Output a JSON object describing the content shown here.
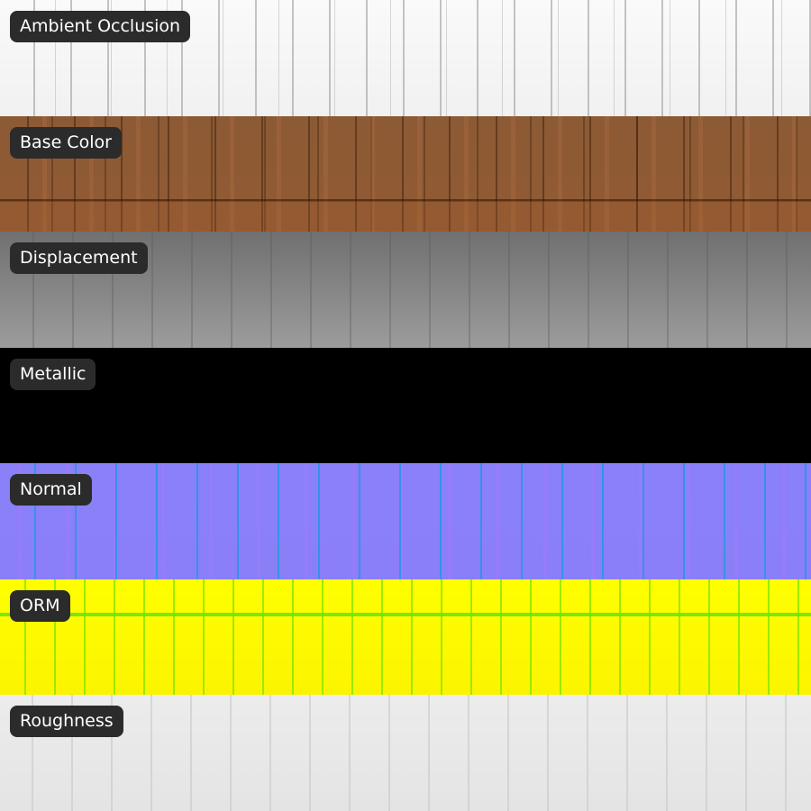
{
  "strips": [
    {
      "label": "Ambient Occlusion"
    },
    {
      "label": "Base Color"
    },
    {
      "label": "Displacement"
    },
    {
      "label": "Metallic"
    },
    {
      "label": "Normal"
    },
    {
      "label": "ORM"
    },
    {
      "label": "Roughness"
    }
  ]
}
